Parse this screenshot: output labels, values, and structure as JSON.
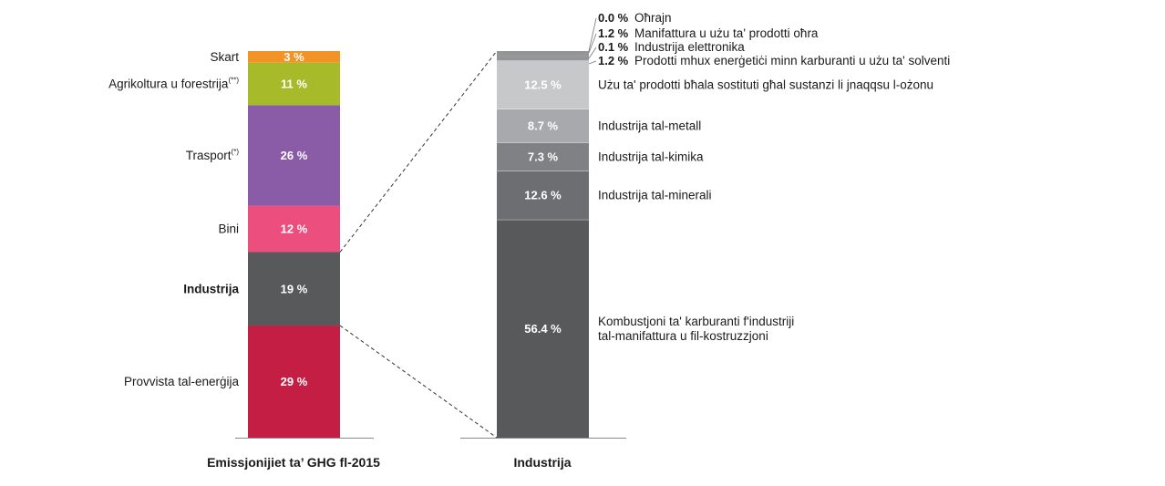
{
  "chart_data": [
    {
      "type": "bar",
      "stacked": true,
      "title": "Emissjonijiet ta’ GHG fl-2015",
      "unit": "%",
      "segments": [
        {
          "label": "Provvista tal-enerġija",
          "value": 29,
          "display": "29 %",
          "color": "#c41e44",
          "bold": false
        },
        {
          "label": "Industrija",
          "value": 19,
          "display": "19 %",
          "color": "#58595b",
          "bold": true
        },
        {
          "label": "Bini",
          "value": 12,
          "display": "12 %",
          "color": "#ec4e7e",
          "bold": false
        },
        {
          "label": "Trasport",
          "sup": "(*)",
          "value": 26,
          "display": "26 %",
          "color": "#8a5ca8",
          "bold": false
        },
        {
          "label": "Agrikoltura u forestrija",
          "sup": "(**)",
          "value": 11,
          "display": "11 %",
          "color": "#a7ba2a",
          "bold": false
        },
        {
          "label": "Skart",
          "value": 3,
          "display": "3 %",
          "color": "#f39325",
          "bold": false
        }
      ]
    },
    {
      "type": "bar",
      "stacked": true,
      "title": "Industrija",
      "unit": "%",
      "segments": [
        {
          "label_lines": [
            "Kombustjoni ta' karburanti f'industriji",
            "tal-manifattura u fil-kostruzzjoni"
          ],
          "value": 56.4,
          "display": "56.4 %",
          "color": "#58595b"
        },
        {
          "label_lines": [
            "Industrija tal-minerali"
          ],
          "value": 12.6,
          "display": "12.6 %",
          "color": "#6d6e71"
        },
        {
          "label_lines": [
            "Industrija tal-kimika"
          ],
          "value": 7.3,
          "display": "7.3 %",
          "color": "#808184"
        },
        {
          "label_lines": [
            "Industrija tal-metall"
          ],
          "value": 8.7,
          "display": "8.7 %",
          "color": "#a7a9ac"
        },
        {
          "label_lines": [
            "Użu ta' prodotti bħala sostituti għal sustanzi li jnaqqsu l-ożonu"
          ],
          "value": 12.5,
          "display": "12.5 %",
          "color": "#c7c8ca"
        },
        {
          "label_lines": [
            "Prodotti mhux enerġetiċi minn karburanti u użu ta' solventi"
          ],
          "value": 1.2,
          "display": "1.2 %",
          "color": "#939598",
          "small": true
        },
        {
          "label_lines": [
            "Industrija elettronika"
          ],
          "value": 0.1,
          "display": "0.1 %",
          "color": "#939598",
          "small": true
        },
        {
          "label_lines": [
            "Manifattura u użu ta' prodotti oħra"
          ],
          "value": 1.2,
          "display": "1.2 %",
          "color": "#939598",
          "small": true
        },
        {
          "label_lines": [
            "Oħrajn"
          ],
          "value": 0.0,
          "display": "0.0 %",
          "color": "#939598",
          "small": true
        }
      ]
    }
  ]
}
